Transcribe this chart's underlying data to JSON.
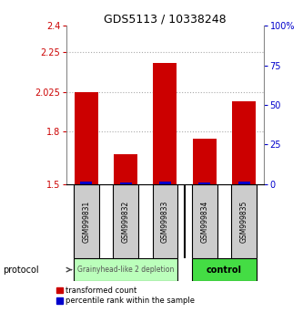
{
  "title": "GDS5113 / 10338248",
  "samples": [
    "GSM999831",
    "GSM999832",
    "GSM999833",
    "GSM999834",
    "GSM999835"
  ],
  "red_values": [
    2.025,
    1.67,
    2.19,
    1.76,
    1.97
  ],
  "blue_values": [
    1.515,
    1.507,
    1.512,
    1.51,
    1.513
  ],
  "y_min": 1.5,
  "y_max": 2.4,
  "y_ticks_left": [
    1.5,
    1.8,
    2.025,
    2.25,
    2.4
  ],
  "y_ticks_right": [
    0,
    25,
    50,
    75,
    100
  ],
  "y_ticks_right_labels": [
    "0",
    "25",
    "50",
    "75",
    "100%"
  ],
  "bar_color_red": "#cc0000",
  "bar_color_blue": "#0000cc",
  "bar_width": 0.6,
  "groups": [
    {
      "label": "Grainyhead-like 2 depletion",
      "samples": [
        0,
        1,
        2
      ],
      "color": "#bbffbb",
      "bold": false
    },
    {
      "label": "control",
      "samples": [
        3,
        4
      ],
      "color": "#44dd44",
      "bold": true
    }
  ],
  "protocol_label": "protocol",
  "legend_red": "transformed count",
  "legend_blue": "percentile rank within the sample",
  "label_color_left": "#cc0000",
  "label_color_right": "#0000cc",
  "background_color": "#ffffff",
  "sample_box_color": "#cccccc",
  "dotted_line_color": "#aaaaaa",
  "plot_bg": "#ffffff"
}
